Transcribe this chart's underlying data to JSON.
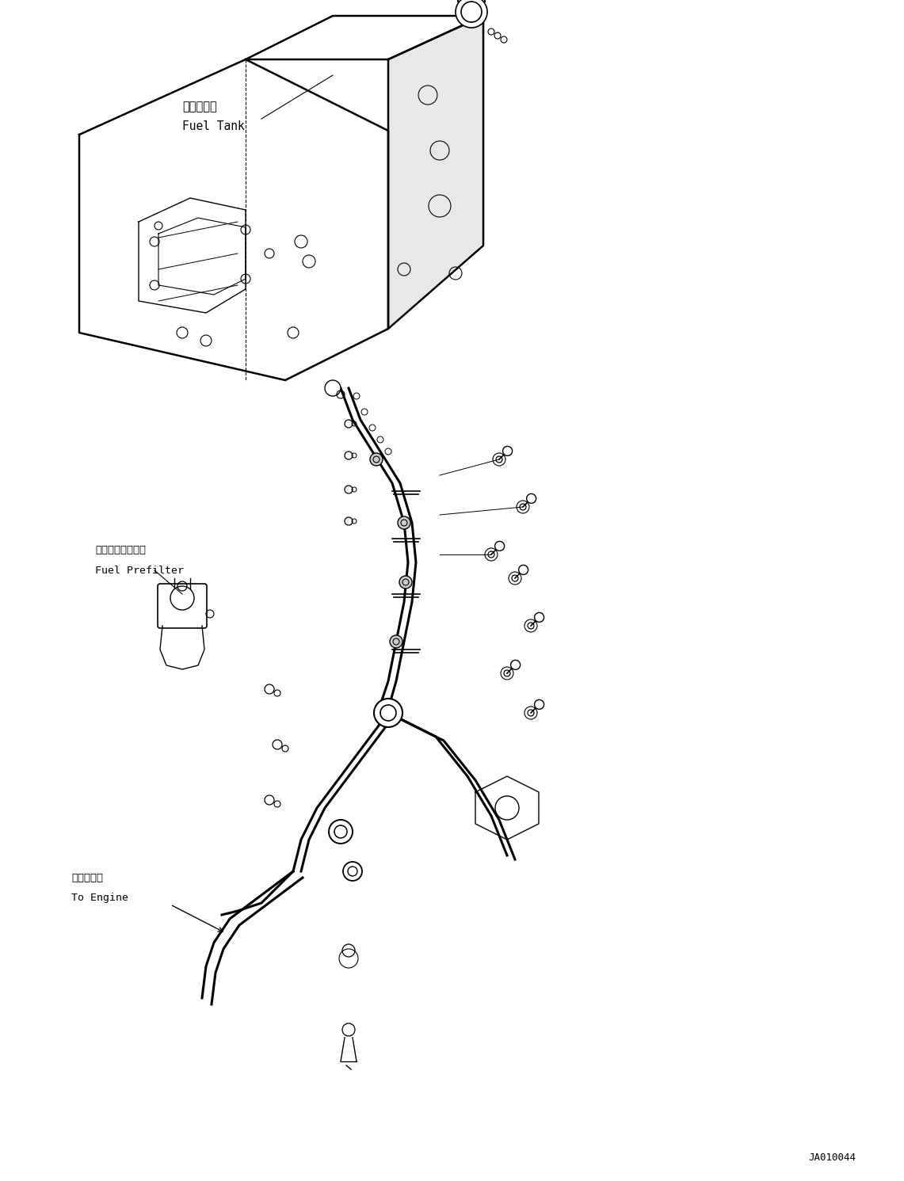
{
  "bg_color": "#ffffff",
  "line_color": "#000000",
  "text_color": "#000000",
  "fig_width": 11.41,
  "fig_height": 14.91,
  "dpi": 100,
  "label_fuel_tank_jp": "燃料タンク",
  "label_fuel_tank_en": "Fuel Tank",
  "label_prefilter_jp": "燃料プレフィルタ",
  "label_prefilter_en": "Fuel Prefilter",
  "label_engine_jp": "エンジンへ",
  "label_engine_en": "To Engine",
  "label_code": "JA010044",
  "font_size_label": 9.5,
  "font_size_code": 9
}
